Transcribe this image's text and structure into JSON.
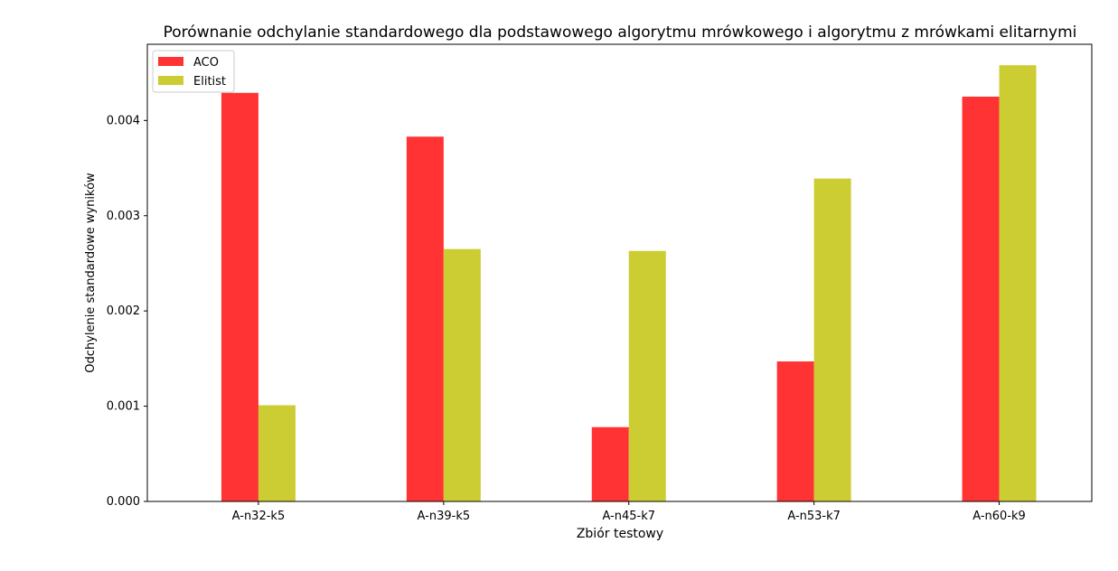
{
  "chart_data": {
    "type": "bar",
    "title": "Porównanie odchylanie standardowego dla podstawowego algorytmu mrówkowego i algorytmu z mrówkami elitarnymi",
    "xlabel": "Zbiór testowy",
    "ylabel": "Odchylenie standardowe wyników",
    "categories": [
      "A-n32-k5",
      "A-n39-k5",
      "A-n45-k7",
      "A-n53-k7",
      "A-n60-k9"
    ],
    "series": [
      {
        "name": "ACO",
        "color": "#ff3333",
        "values": [
          0.00429,
          0.00383,
          0.00078,
          0.00147,
          0.00425
        ]
      },
      {
        "name": "Elitist",
        "color": "#cccc33",
        "values": [
          0.00101,
          0.00265,
          0.00263,
          0.00339,
          0.00458
        ]
      }
    ],
    "ylim": [
      0,
      0.0048
    ],
    "yticks": [
      0.0,
      0.001,
      0.002,
      0.003,
      0.004
    ],
    "ytick_labels": [
      "0.000",
      "0.001",
      "0.002",
      "0.003",
      "0.004"
    ],
    "legend_position": "top-left",
    "grid": false
  }
}
